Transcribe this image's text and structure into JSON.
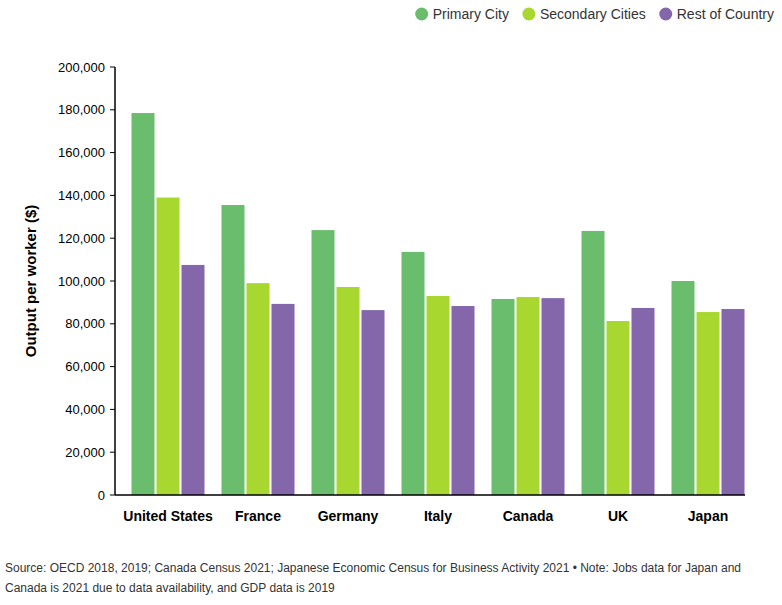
{
  "chart_data": {
    "type": "bar",
    "y_label": "Output per worker ($)",
    "caption": "Source: OECD 2018, 2019; Canada Census 2021; Japanese Economic Census for Business Activity 2021 • Note: Jobs data for Japan and Canada is 2021 due to data availability, and GDP data is 2019",
    "categories": [
      "United States",
      "France",
      "Germany",
      "Italy",
      "Canada",
      "UK",
      "Japan"
    ],
    "series": [
      {
        "name": "Primary City",
        "color": "#6bbd6e",
        "values": [
          178500,
          135500,
          123800,
          113600,
          91600,
          123400,
          100000
        ]
      },
      {
        "name": "Secondary Cities",
        "color": "#a8d82f",
        "values": [
          139000,
          99000,
          97200,
          93000,
          92500,
          81300,
          85500
        ]
      },
      {
        "name": "Rest of Country",
        "color": "#8466ab",
        "values": [
          107500,
          89300,
          86400,
          88300,
          92000,
          87400,
          86900
        ]
      }
    ],
    "ylim": [
      0,
      200000
    ],
    "yticks": [
      0,
      {
        "value": 20000,
        "label": "20,000"
      },
      {
        "value": 40000,
        "label": "40,000"
      },
      {
        "value": 60000,
        "label": "60,000"
      },
      {
        "value": 80000,
        "label": "80,000"
      },
      {
        "value": 100000,
        "label": "100,000"
      },
      {
        "value": 120000,
        "label": "120,000"
      },
      {
        "value": 140000,
        "label": "140,000"
      },
      {
        "value": 160000,
        "label": "160,000"
      },
      {
        "value": 180000,
        "label": "180,000"
      },
      {
        "value": 200000,
        "label": "200,000"
      }
    ],
    "grid": false,
    "legend": "top-right"
  }
}
